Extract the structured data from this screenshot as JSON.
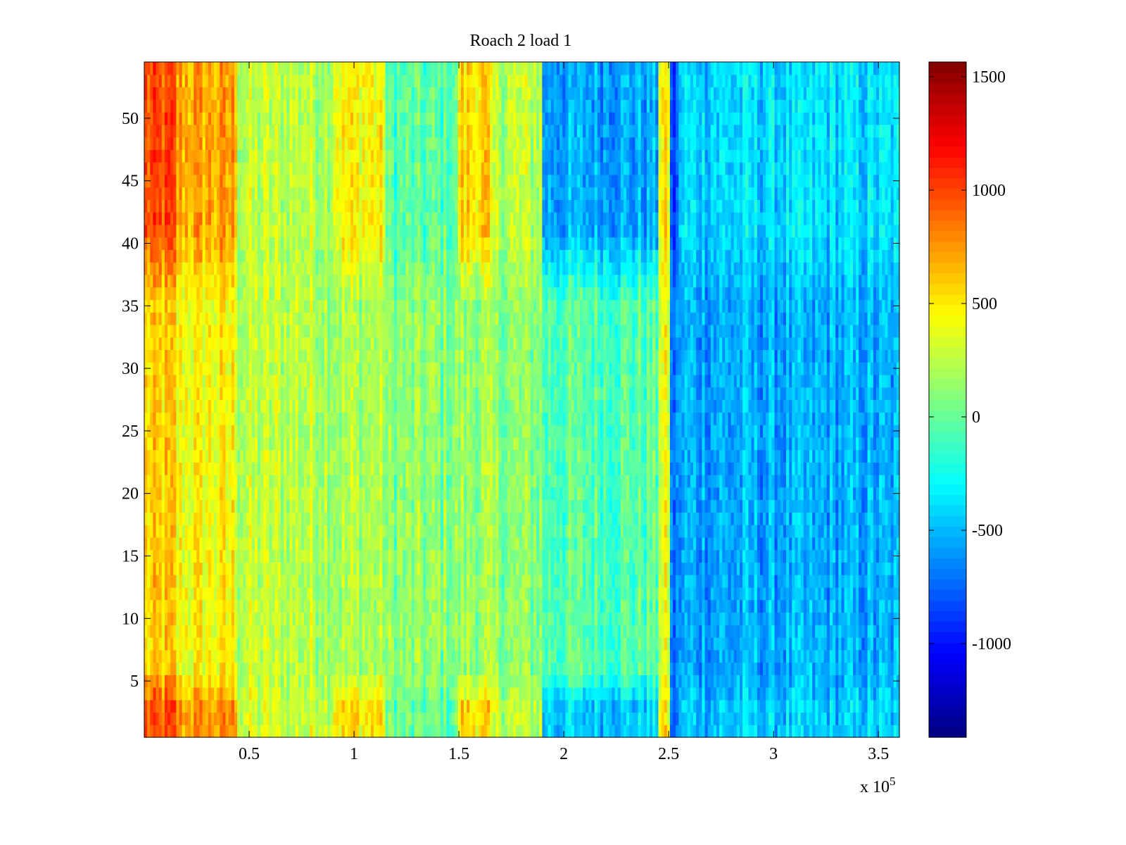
{
  "chart_data": {
    "type": "heatmap",
    "title": "Roach 2 load 1",
    "xlabel": "",
    "ylabel": "",
    "x_exponent_label": "x 10",
    "x_exponent": "5",
    "xlim": [
      0,
      3.6
    ],
    "ylim": [
      0.5,
      54.5
    ],
    "rows": 54,
    "x_ticks": [
      0.5,
      1,
      1.5,
      2,
      2.5,
      3,
      3.5
    ],
    "x_tick_labels": [
      "0.5",
      "1",
      "1.5",
      "2",
      "2.5",
      "3",
      "3.5"
    ],
    "y_ticks": [
      5,
      10,
      15,
      20,
      25,
      30,
      35,
      40,
      45,
      50
    ],
    "y_tick_labels": [
      "5",
      "10",
      "15",
      "20",
      "25",
      "30",
      "35",
      "40",
      "45",
      "50"
    ],
    "colormap": "jet",
    "clim": [
      -1413,
      1565
    ],
    "colorbar_ticks": [
      1500,
      1000,
      500,
      0,
      -500,
      -1000
    ],
    "colorbar_tick_labels": [
      "1500",
      "1000",
      "500",
      "0",
      "-500",
      "-1000"
    ],
    "x_profile_note": "approximate mean value per x-range (units of 1e5) for top rows (>35), middle rows, bottom rows (<5)",
    "x_profile": [
      {
        "x0": 0.0,
        "x1": 0.15,
        "top": 950,
        "mid": 550,
        "bottom": 950
      },
      {
        "x0": 0.15,
        "x1": 0.45,
        "top": 700,
        "mid": 430,
        "bottom": 750
      },
      {
        "x0": 0.45,
        "x1": 0.9,
        "top": 250,
        "mid": 250,
        "bottom": 300
      },
      {
        "x0": 0.9,
        "x1": 1.15,
        "top": 450,
        "mid": 200,
        "bottom": 500
      },
      {
        "x0": 1.15,
        "x1": 1.5,
        "top": -50,
        "mid": 100,
        "bottom": 0
      },
      {
        "x0": 1.5,
        "x1": 1.65,
        "top": 550,
        "mid": 150,
        "bottom": 550
      },
      {
        "x0": 1.65,
        "x1": 1.9,
        "top": 250,
        "mid": 100,
        "bottom": 250
      },
      {
        "x0": 1.9,
        "x1": 2.45,
        "top": -550,
        "mid": -50,
        "bottom": -450
      },
      {
        "x0": 2.45,
        "x1": 2.5,
        "top": 450,
        "mid": 350,
        "bottom": 450
      },
      {
        "x0": 2.5,
        "x1": 2.55,
        "top": -850,
        "mid": -700,
        "bottom": -750
      },
      {
        "x0": 2.55,
        "x1": 3.6,
        "top": -400,
        "mid": -550,
        "bottom": -450
      }
    ],
    "noise_amplitude": 260
  }
}
